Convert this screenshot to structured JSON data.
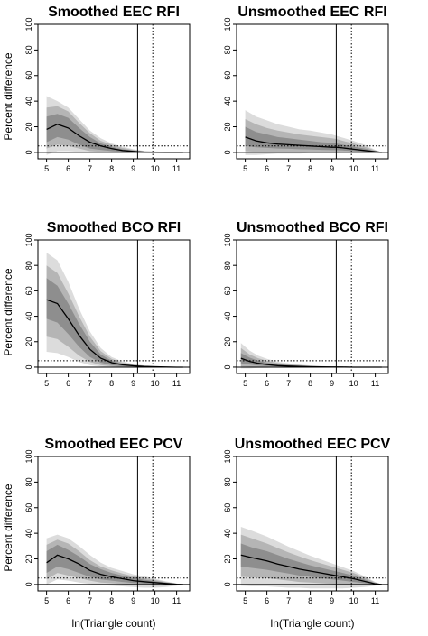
{
  "figure": {
    "x_axis_label": "ln(Triangle count)",
    "y_axis_label": "Percent difference"
  },
  "colors": {
    "band_outer": "#dcdcdc",
    "band_middle": "#b5b5b5",
    "band_inner": "#8e8e8e",
    "median_line": "#000000",
    "reference_line": "#000000"
  },
  "chart_data": [
    {
      "type": "area",
      "title": "Smoothed EEC RFI",
      "xlim": [
        4.6,
        11.6
      ],
      "ylim": [
        -5,
        100
      ],
      "x_ticks": [
        5,
        6,
        7,
        8,
        9,
        10,
        11
      ],
      "y_ticks": [
        0,
        20,
        40,
        60,
        80,
        100
      ],
      "solid_vline": 9.2,
      "dotted_vline": 9.9,
      "dotted_hline": 5,
      "x": [
        5,
        5.5,
        6,
        6.5,
        7,
        7.5,
        8,
        8.5,
        9,
        9.2,
        9.5,
        10,
        10.5,
        11,
        11.3
      ],
      "median": [
        18,
        22,
        19,
        13,
        8,
        5,
        3,
        1.5,
        0.8,
        0.5,
        0.3,
        0.2,
        0.1,
        0,
        0
      ],
      "inner_low": [
        8,
        12,
        10,
        6,
        3,
        2,
        1,
        0.5,
        0.3,
        0.2,
        0.1,
        0,
        0,
        0,
        0
      ],
      "inner_high": [
        28,
        30,
        27,
        19,
        12,
        7,
        4.5,
        2.5,
        1.5,
        1,
        0.6,
        0.4,
        0.2,
        0,
        0
      ],
      "middle_low": [
        3,
        6,
        5,
        3,
        1,
        0.5,
        0.3,
        0.1,
        0,
        0,
        0,
        0,
        0,
        0,
        0
      ],
      "middle_high": [
        35,
        36,
        32,
        23,
        15,
        9,
        6,
        3.5,
        2,
        1.5,
        0.9,
        0.6,
        0.3,
        0,
        0
      ],
      "outer_low": [
        -2,
        1,
        1,
        0.5,
        0,
        0,
        0,
        0,
        0,
        0,
        0,
        0,
        0,
        0,
        0
      ],
      "outer_high": [
        44,
        40,
        35,
        26,
        17,
        11,
        7,
        4.5,
        2.5,
        2,
        1.2,
        0.8,
        0.4,
        0,
        0
      ]
    },
    {
      "type": "area",
      "title": "Unsmoothed EEC RFI",
      "xlim": [
        4.6,
        11.6
      ],
      "ylim": [
        -5,
        100
      ],
      "x_ticks": [
        5,
        6,
        7,
        8,
        9,
        10,
        11
      ],
      "y_ticks": [
        0,
        20,
        40,
        60,
        80,
        100
      ],
      "solid_vline": 9.2,
      "dotted_vline": 9.9,
      "dotted_hline": 5,
      "x": [
        5,
        5.5,
        6,
        6.5,
        7,
        7.5,
        8,
        8.5,
        9,
        9.2,
        9.5,
        10,
        10.5,
        11,
        11.3
      ],
      "median": [
        12,
        9,
        7.5,
        6.5,
        6,
        5.5,
        5,
        4.5,
        4,
        4,
        3.5,
        2.5,
        1.5,
        0.5,
        0
      ],
      "inner_low": [
        5,
        4,
        3.5,
        3,
        2.8,
        2.5,
        2.3,
        2,
        1.8,
        1.8,
        1.5,
        1,
        0.5,
        0,
        0
      ],
      "inner_high": [
        20,
        16,
        14,
        12,
        11,
        10,
        9,
        8,
        7.5,
        7,
        6,
        4.5,
        3,
        1,
        0
      ],
      "middle_low": [
        1,
        0.5,
        0.5,
        0.5,
        0.5,
        0.5,
        0.5,
        0.5,
        0.5,
        0.5,
        0.5,
        0,
        0,
        0,
        0
      ],
      "middle_high": [
        26,
        22,
        19,
        17,
        15.5,
        14,
        13,
        12,
        11,
        10.5,
        9,
        7,
        4.5,
        1.5,
        0
      ],
      "outer_low": [
        -2,
        -2,
        -1.5,
        -1,
        -1,
        -1,
        -0.5,
        -0.5,
        -0.5,
        -0.5,
        0,
        0,
        0,
        0,
        0
      ],
      "outer_high": [
        33,
        28,
        25,
        22,
        20,
        18,
        17,
        15.5,
        14,
        13,
        11.5,
        9,
        6,
        2,
        0
      ]
    },
    {
      "type": "area",
      "title": "Smoothed BCO RFI",
      "xlim": [
        4.6,
        11.6
      ],
      "ylim": [
        -5,
        100
      ],
      "x_ticks": [
        5,
        6,
        7,
        8,
        9,
        10,
        11
      ],
      "y_ticks": [
        0,
        20,
        40,
        60,
        80,
        100
      ],
      "solid_vline": 9.2,
      "dotted_vline": 9.9,
      "dotted_hline": 5,
      "x": [
        5,
        5.5,
        6,
        6.5,
        7,
        7.5,
        8,
        8.5,
        9,
        9.2,
        9.5,
        10,
        10.5,
        11,
        11.3
      ],
      "median": [
        53,
        50,
        38,
        25,
        14,
        7,
        3.5,
        1.8,
        1,
        0.8,
        0.5,
        0.3,
        0.1,
        0,
        0
      ],
      "inner_low": [
        38,
        35,
        26,
        16,
        8,
        3.5,
        1.5,
        0.7,
        0.3,
        0.2,
        0.1,
        0,
        0,
        0,
        0
      ],
      "inner_high": [
        70,
        64,
        50,
        34,
        20,
        10,
        5,
        2.7,
        1.6,
        1.2,
        0.8,
        0.5,
        0.2,
        0,
        0
      ],
      "middle_low": [
        24,
        22,
        16,
        9,
        4,
        1.5,
        0.6,
        0.2,
        0,
        0,
        0,
        0,
        0,
        0,
        0
      ],
      "middle_high": [
        80,
        74,
        58,
        40,
        24,
        12.5,
        6.5,
        3.5,
        2,
        1.6,
        1,
        0.6,
        0.3,
        0,
        0
      ],
      "outer_low": [
        12,
        11,
        8,
        4,
        1.5,
        0.5,
        0,
        0,
        0,
        0,
        0,
        0,
        0,
        0,
        0
      ],
      "outer_high": [
        90,
        84,
        67,
        46,
        28,
        15,
        8,
        4.5,
        2.5,
        2,
        1.3,
        0.8,
        0.4,
        0,
        0
      ]
    },
    {
      "type": "area",
      "title": "Unsmoothed BCO RFI",
      "xlim": [
        4.6,
        11.6
      ],
      "ylim": [
        -5,
        100
      ],
      "x_ticks": [
        5,
        6,
        7,
        8,
        9,
        10,
        11
      ],
      "y_ticks": [
        0,
        20,
        40,
        60,
        80,
        100
      ],
      "solid_vline": 9.2,
      "dotted_vline": 9.9,
      "dotted_hline": 5,
      "x": [
        4.8,
        5.2,
        5.6,
        6,
        6.5,
        7,
        7.5,
        8,
        8.5,
        9,
        9.5,
        10,
        10.5,
        11,
        11.3
      ],
      "median": [
        7,
        4.5,
        3,
        2,
        1.2,
        0.8,
        0.5,
        0.3,
        0.2,
        0.1,
        0.1,
        0,
        0,
        0,
        0
      ],
      "inner_low": [
        3,
        2,
        1.3,
        0.8,
        0.5,
        0.3,
        0.2,
        0.1,
        0,
        0,
        0,
        0,
        0,
        0,
        0
      ],
      "inner_high": [
        11,
        7.5,
        5,
        3.5,
        2.2,
        1.5,
        1,
        0.6,
        0.4,
        0.3,
        0.2,
        0.1,
        0,
        0,
        0
      ],
      "middle_low": [
        0.5,
        0.3,
        0.2,
        0.1,
        0,
        0,
        0,
        0,
        0,
        0,
        0,
        0,
        0,
        0,
        0
      ],
      "middle_high": [
        15,
        10,
        7,
        5,
        3.2,
        2.2,
        1.5,
        1,
        0.6,
        0.4,
        0.3,
        0.2,
        0.1,
        0,
        0
      ],
      "outer_low": [
        -1,
        -1,
        -0.5,
        -0.5,
        0,
        0,
        0,
        0,
        0,
        0,
        0,
        0,
        0,
        0,
        0
      ],
      "outer_high": [
        19,
        13,
        9,
        6.5,
        4.2,
        3,
        2,
        1.3,
        0.8,
        0.5,
        0.4,
        0.3,
        0.1,
        0,
        0
      ]
    },
    {
      "type": "area",
      "title": "Smoothed EEC PCV",
      "xlim": [
        4.6,
        11.6
      ],
      "ylim": [
        -5,
        100
      ],
      "x_ticks": [
        5,
        6,
        7,
        8,
        9,
        10,
        11
      ],
      "y_ticks": [
        0,
        20,
        40,
        60,
        80,
        100
      ],
      "solid_vline": 9.2,
      "dotted_vline": 9.9,
      "dotted_hline": 5,
      "x": [
        5,
        5.5,
        6,
        6.5,
        7,
        7.5,
        8,
        8.5,
        9,
        9.5,
        10,
        10.5,
        11,
        11.3
      ],
      "median": [
        17,
        23,
        20,
        16,
        11,
        8,
        6,
        4.5,
        3,
        2.2,
        1.5,
        0.8,
        0.2,
        0
      ],
      "inner_low": [
        9,
        14,
        12,
        9,
        6,
        4,
        3,
        2,
        1.2,
        0.7,
        0.3,
        0,
        0,
        0
      ],
      "inner_high": [
        26,
        31,
        27,
        22,
        16,
        12,
        9,
        7,
        5,
        3.8,
        2.6,
        1.5,
        0.4,
        0
      ],
      "middle_low": [
        4,
        9,
        7,
        5,
        3,
        1.5,
        1,
        0.5,
        0,
        -0.5,
        -1,
        -1,
        -0.5,
        0
      ],
      "middle_high": [
        31,
        35,
        32,
        26,
        19,
        14,
        11,
        8.5,
        6.5,
        5,
        3.5,
        2,
        0.6,
        0
      ],
      "outer_low": [
        0,
        4,
        3,
        1.5,
        0.5,
        -0.5,
        -1,
        -1.5,
        -2,
        -2.5,
        -2.5,
        -2,
        -1,
        0
      ],
      "outer_high": [
        36,
        39,
        36,
        30,
        23,
        17,
        13,
        10.5,
        8,
        6.5,
        4.5,
        2.5,
        0.8,
        0
      ]
    },
    {
      "type": "area",
      "title": "Unsmoothed EEC PCV",
      "xlim": [
        4.6,
        11.6
      ],
      "ylim": [
        -5,
        100
      ],
      "x_ticks": [
        5,
        6,
        7,
        8,
        9,
        10,
        11
      ],
      "y_ticks": [
        0,
        20,
        40,
        60,
        80,
        100
      ],
      "solid_vline": 9.2,
      "dotted_vline": 9.9,
      "dotted_hline": 5,
      "x": [
        4.8,
        5.3,
        6,
        6.5,
        7,
        7.5,
        8,
        8.5,
        9,
        9.5,
        10,
        10.5,
        11,
        11.3
      ],
      "median": [
        23,
        21,
        18.5,
        16,
        14,
        12,
        10.5,
        9,
        7.5,
        6,
        4.5,
        2.5,
        0.5,
        0
      ],
      "inner_low": [
        14,
        13,
        11.5,
        10,
        8.5,
        7,
        6,
        5,
        4,
        3,
        2,
        1,
        0,
        0
      ],
      "inner_high": [
        32,
        29,
        26,
        23,
        20,
        17.5,
        15,
        13,
        11,
        9,
        7,
        4,
        1,
        0
      ],
      "middle_low": [
        6,
        5.5,
        5,
        4,
        3,
        2,
        1.5,
        1,
        0.5,
        0,
        -0.5,
        -0.5,
        0,
        0
      ],
      "middle_high": [
        39,
        36,
        32,
        28.5,
        25,
        22,
        19,
        16.5,
        14,
        11.5,
        9,
        5.5,
        1.5,
        0
      ],
      "outer_low": [
        -1,
        -1.5,
        -1.5,
        -2,
        -2.5,
        -2.5,
        -3,
        -3,
        -3,
        -3,
        -2.5,
        -2,
        -1,
        0
      ],
      "outer_high": [
        45,
        42,
        37.5,
        33.5,
        29.5,
        26,
        22.5,
        19.5,
        16.5,
        13.5,
        10.5,
        6.5,
        2,
        0
      ]
    }
  ]
}
